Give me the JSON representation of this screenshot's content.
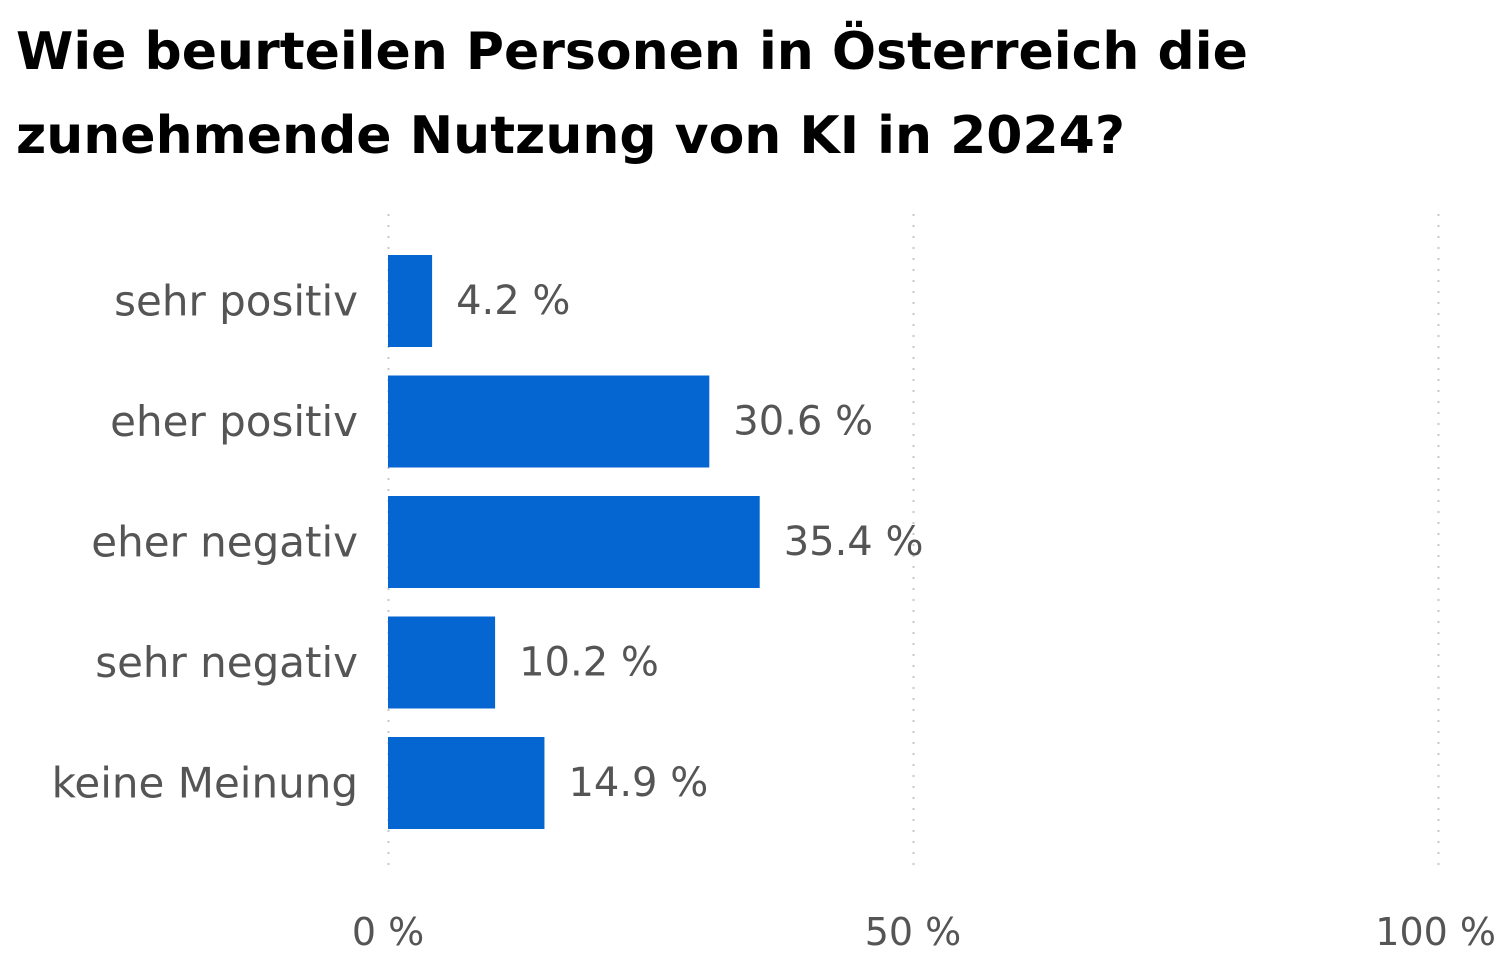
{
  "title": "Wie beurteilen Personen in Österreich die zunehmende Nutzung von KI in 2024?",
  "colors": {
    "bar": "#0566d1",
    "label": "#555555",
    "grid": "#c8c8c8",
    "title": "#000000"
  },
  "chart_data": {
    "type": "bar",
    "orientation": "horizontal",
    "title": "Wie beurteilen Personen in Österreich die zunehmende Nutzung von KI in 2024?",
    "categories": [
      "sehr positiv",
      "eher positiv",
      "eher negativ",
      "sehr negativ",
      "keine Meinung"
    ],
    "values": [
      4.2,
      30.6,
      35.4,
      10.2,
      14.9
    ],
    "value_labels": [
      "4.2 %",
      "30.6 %",
      "35.4 %",
      "10.2 %",
      "14.9 %"
    ],
    "xlim": [
      0,
      100
    ],
    "xticks": [
      0,
      50,
      100
    ],
    "xtick_labels": [
      "0 %",
      "50 %",
      "100 %"
    ],
    "xlabel": "",
    "ylabel": "",
    "grid": true,
    "grid_style": "dotted",
    "unit": "%"
  }
}
